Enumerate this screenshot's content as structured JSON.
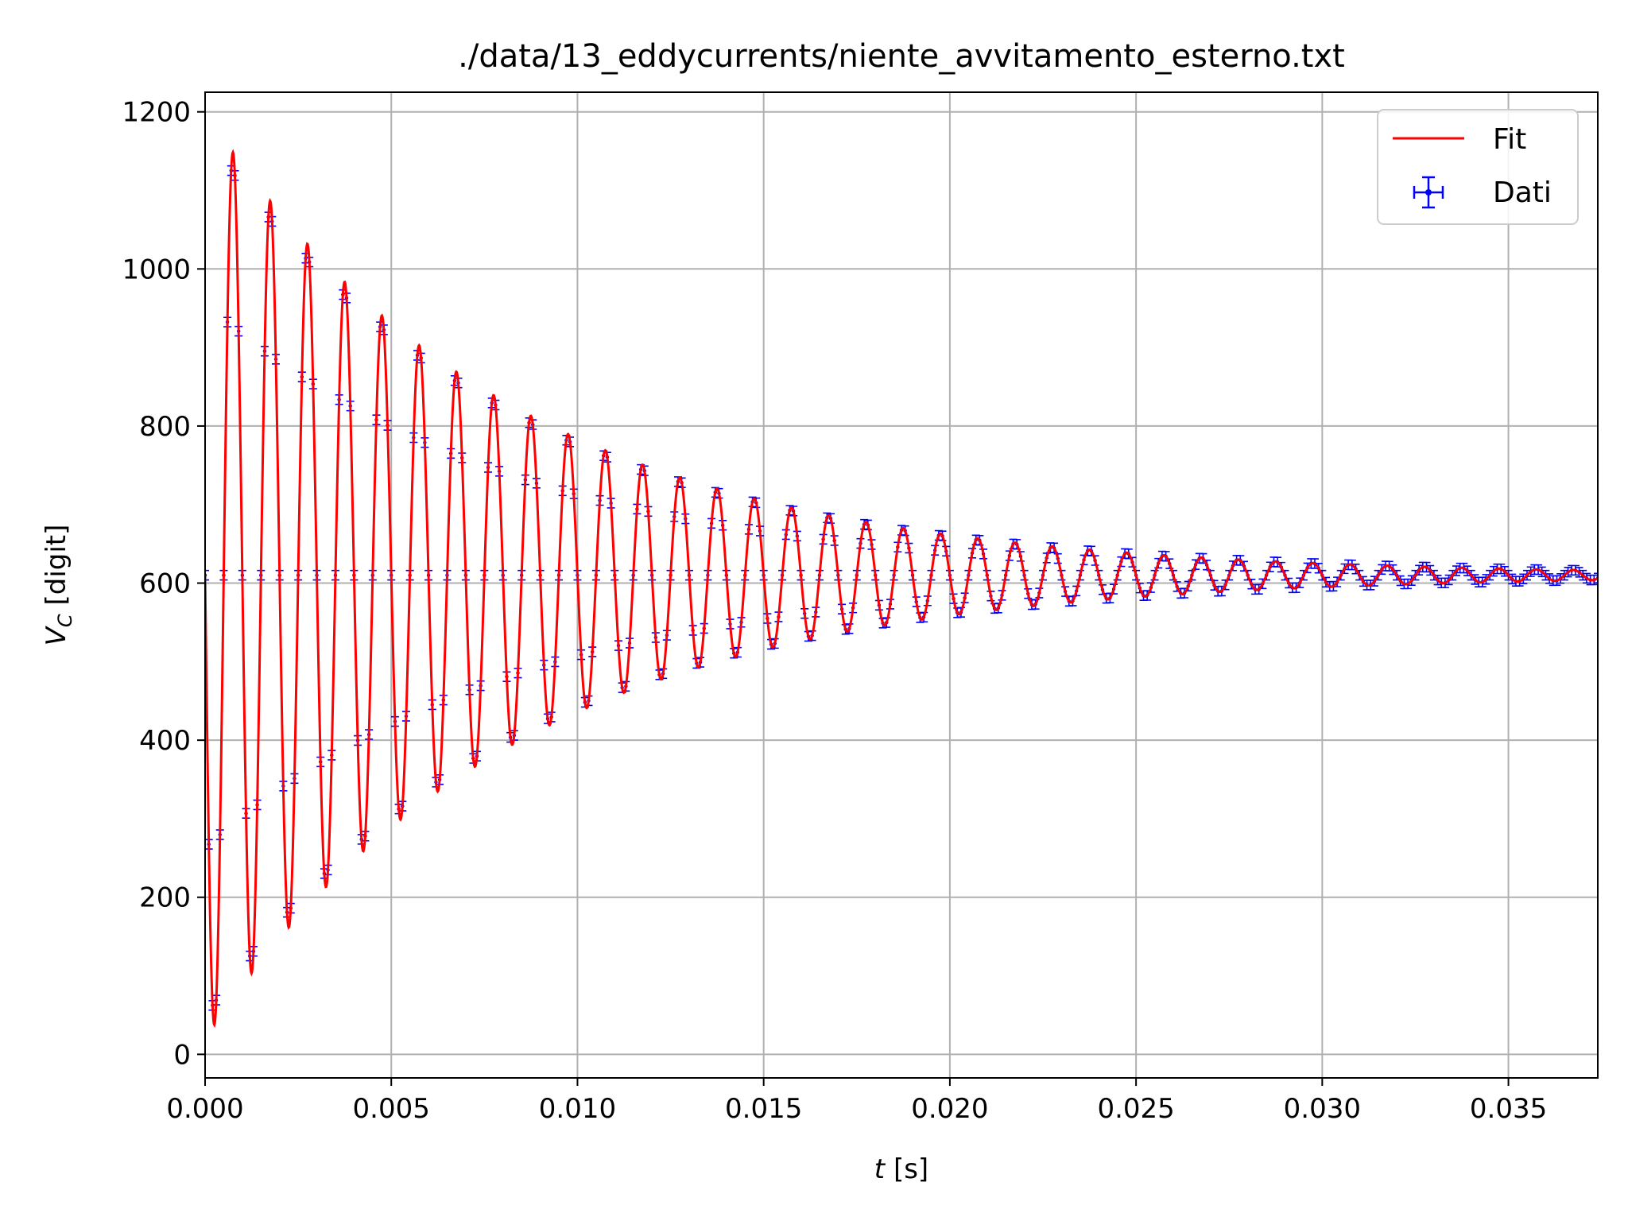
{
  "chart_data": {
    "type": "line",
    "title": "./data/13_eddycurrents/niente_avvitamento_esterno.txt",
    "xlabel_var": "t",
    "xlabel_unit": "[s]",
    "ylabel_var": "V",
    "ylabel_sub": "C",
    "ylabel_unit": "[digit]",
    "xlim": [
      0.0,
      0.0374
    ],
    "ylim": [
      -30,
      1225
    ],
    "xticks": [
      0.0,
      0.005,
      0.01,
      0.015,
      0.02,
      0.025,
      0.03,
      0.035
    ],
    "xtick_labels": [
      "0.000",
      "0.005",
      "0.010",
      "0.015",
      "0.020",
      "0.025",
      "0.030",
      "0.035"
    ],
    "yticks": [
      0,
      200,
      400,
      600,
      800,
      1000,
      1200
    ],
    "ytick_labels": [
      "0",
      "200",
      "400",
      "600",
      "800",
      "1000",
      "1200"
    ],
    "grid": true,
    "legend_position": "top-right",
    "series": [
      {
        "name": "Fit",
        "kind": "line",
        "color": "#ff0000",
        "model": {
          "offset": 610,
          "amplitude": 590,
          "decay_time_s": 0.0082,
          "frequency_hz": 1000,
          "phase_rad": 1.5708,
          "t_start": 0.0,
          "t_end": 0.0374
        }
      },
      {
        "name": "Dati",
        "kind": "errorbar",
        "color": "#0000ff",
        "sampling_interval_s": 0.0001,
        "y_error_digit": 6,
        "x_error_s": 4e-05
      }
    ]
  }
}
